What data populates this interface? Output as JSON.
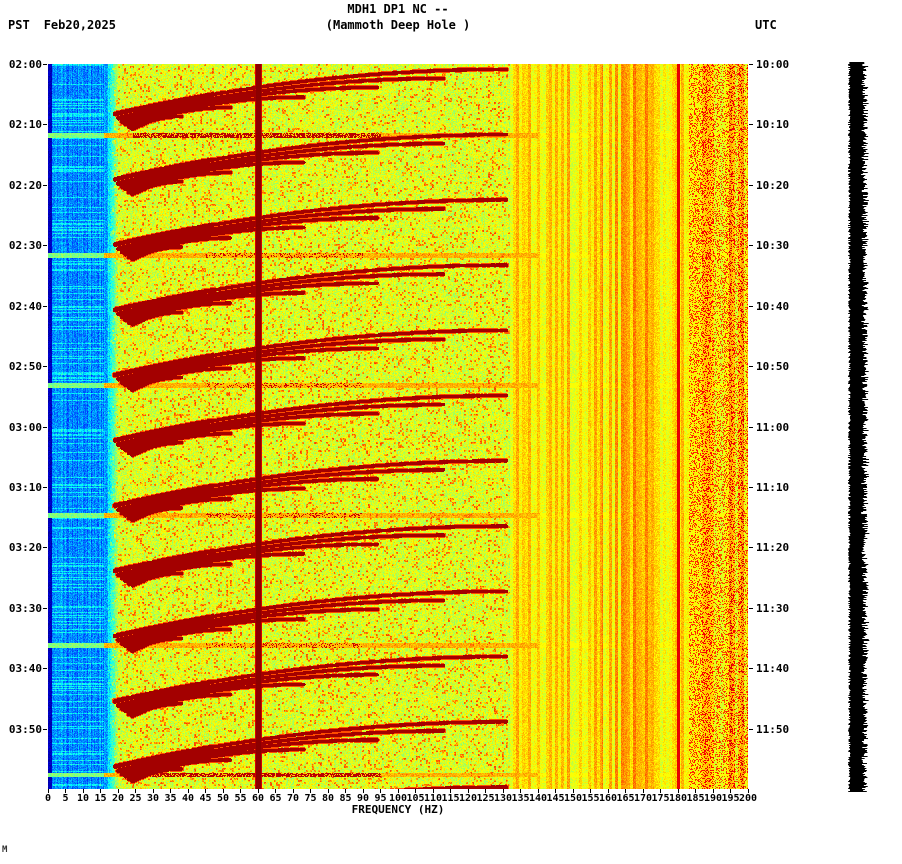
{
  "header": {
    "title_line1": "MDH1 DP1 NC --",
    "title_line2": "(Mammoth Deep Hole )",
    "tz_left": "PST",
    "date": "Feb20,2025",
    "tz_right": "UTC"
  },
  "x_axis": {
    "label": "FREQUENCY (HZ)"
  },
  "corner_mark": "M",
  "side_bar": {
    "color": "#000000"
  },
  "chart_data": {
    "type": "heatmap",
    "title": "MDH1 DP1 NC -- (Mammoth Deep Hole )",
    "station": "MDH1 DP1 NC",
    "station_name": "Mammoth Deep Hole",
    "date": "Feb20,2025",
    "xlabel": "FREQUENCY (HZ)",
    "x_range_hz": [
      0,
      200
    ],
    "x_ticks": [
      0,
      5,
      10,
      15,
      20,
      25,
      30,
      35,
      40,
      45,
      50,
      55,
      60,
      65,
      70,
      75,
      80,
      85,
      90,
      95,
      100,
      105,
      110,
      115,
      120,
      125,
      130,
      135,
      140,
      145,
      150,
      155,
      160,
      165,
      170,
      175,
      180,
      185,
      190,
      195,
      200
    ],
    "y_left_timezone": "PST",
    "y_right_timezone": "UTC",
    "y_left_ticks": [
      "02:00",
      "02:10",
      "02:20",
      "02:30",
      "02:40",
      "02:50",
      "03:00",
      "03:10",
      "03:20",
      "03:30",
      "03:40",
      "03:50"
    ],
    "y_right_ticks": [
      "10:00",
      "10:10",
      "10:20",
      "10:30",
      "10:40",
      "10:50",
      "11:00",
      "11:10",
      "11:20",
      "11:30",
      "11:40",
      "11:50"
    ],
    "time_span_min": 120,
    "time_start_pst": "02:00",
    "time_start_utc": "10:00",
    "colormap": "jet",
    "features": {
      "quiet_low_band_max_hz": 18,
      "active_band_hz": [
        18,
        132
      ],
      "striped_band_hz": [
        132,
        200
      ],
      "power_line_hz": 60,
      "power_line_harmonic_hz": 180,
      "event_lines": [
        {
          "t_min": 11.7,
          "strong_red": true
        },
        {
          "t_min": 31.6,
          "strong_red": false
        },
        {
          "t_min": 53.1,
          "strong_red": false
        },
        {
          "t_min": 74.6,
          "strong_red": false
        },
        {
          "t_min": 96.1,
          "strong_red": false
        },
        {
          "t_min": 117.6,
          "strong_red": true
        }
      ],
      "glide_cycles": {
        "start_min": 0.8,
        "period_min": 10.8,
        "count": 12
      },
      "glide_arcs": [
        {
          "f_lo": 19,
          "f_hi": 131,
          "offset_min": 0.0,
          "dur_min": 7.4
        },
        {
          "f_lo": 20,
          "f_hi": 113,
          "offset_min": 1.5,
          "dur_min": 6.6
        },
        {
          "f_lo": 21,
          "f_hi": 94,
          "offset_min": 3.0,
          "dur_min": 5.6
        },
        {
          "f_lo": 22,
          "f_hi": 73,
          "offset_min": 4.6,
          "dur_min": 4.4
        },
        {
          "f_lo": 23,
          "f_hi": 52,
          "offset_min": 6.3,
          "dur_min": 3.2
        },
        {
          "f_lo": 24,
          "f_hi": 38,
          "offset_min": 7.8,
          "dur_min": 2.0
        }
      ]
    }
  }
}
